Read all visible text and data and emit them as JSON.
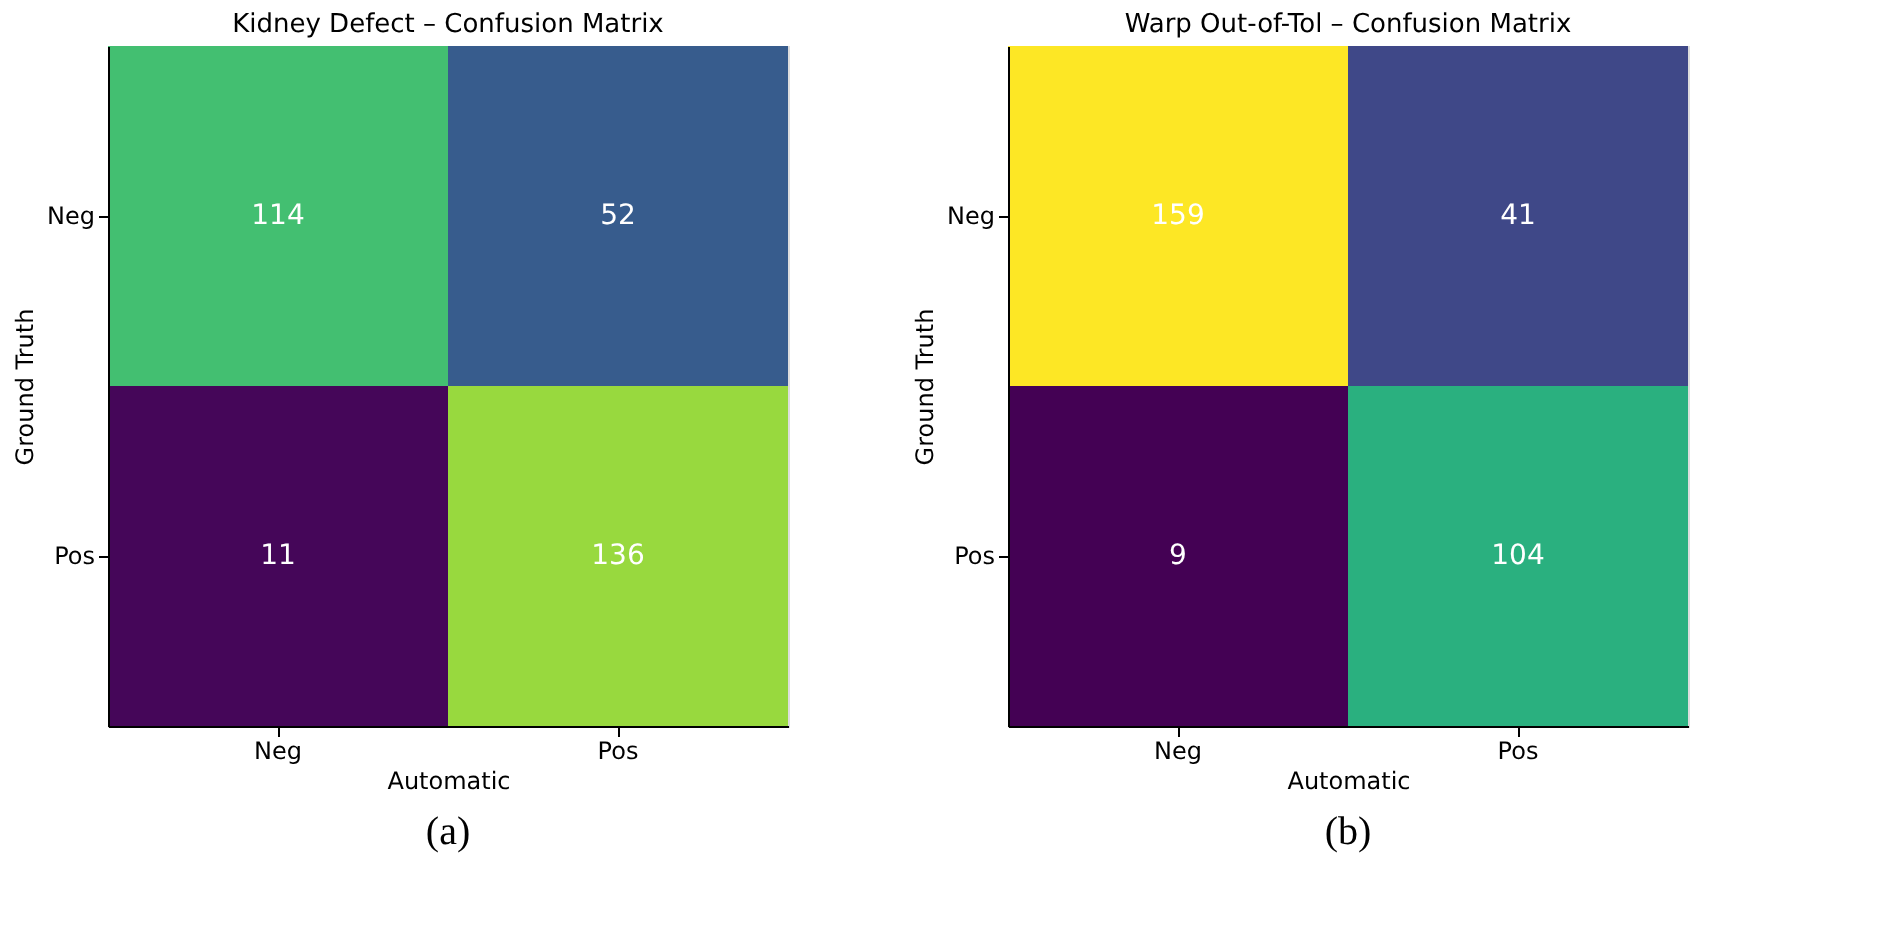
{
  "chart_data": [
    {
      "type": "heatmap",
      "title": "Kidney Defect – Confusion Matrix",
      "xlabel": "Automatic",
      "ylabel": "Ground Truth",
      "categories": [
        "Neg",
        "Pos"
      ],
      "y_categories": [
        "Neg",
        "Pos"
      ],
      "cells": [
        [
          114,
          52
        ],
        [
          11,
          136
        ]
      ],
      "data_labels": true,
      "annotations": [
        "(a)"
      ]
    },
    {
      "type": "heatmap",
      "title": "Warp Out-of-Tol – Confusion Matrix",
      "xlabel": "Automatic",
      "ylabel": "Ground Truth",
      "categories": [
        "Neg",
        "Pos"
      ],
      "y_categories": [
        "Neg",
        "Pos"
      ],
      "cells": [
        [
          159,
          41
        ],
        [
          9,
          104
        ]
      ],
      "data_labels": true,
      "annotations": [
        "(b)"
      ]
    }
  ]
}
